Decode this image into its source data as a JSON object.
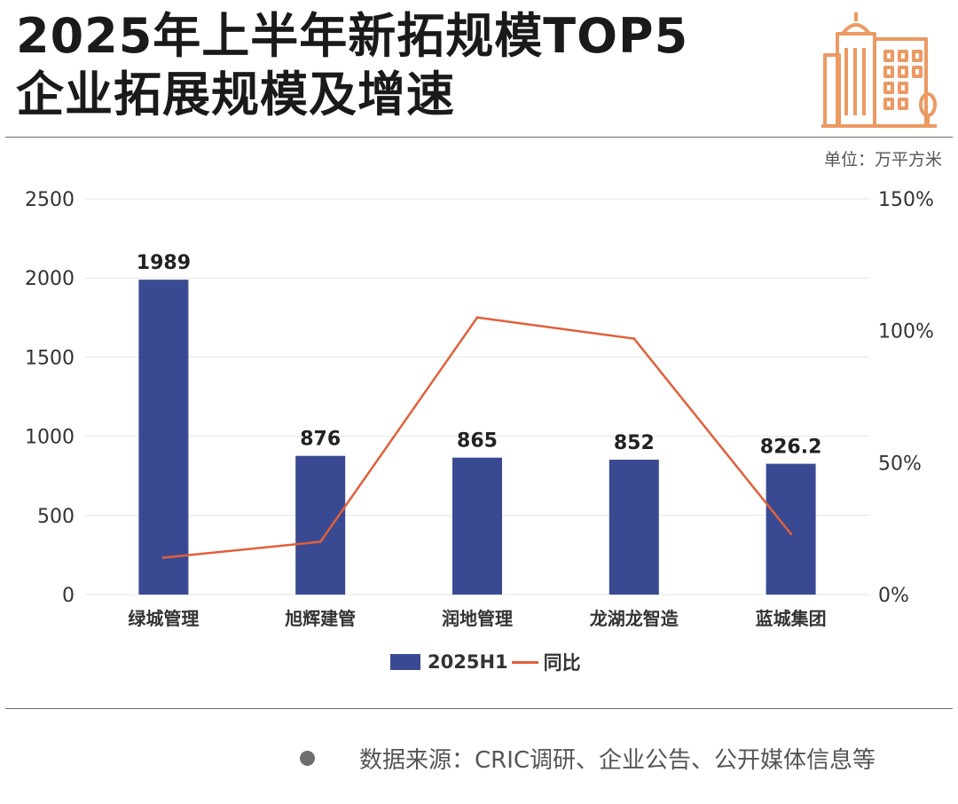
{
  "header": {
    "title_line1": "2025年上半年新拓规模TOP5",
    "title_line2": "企业拓展规模及增速"
  },
  "unit": "单位：万平方米",
  "legend": {
    "bar": "2025H1",
    "line": "同比"
  },
  "source": "数据来源：CRIC调研、企业公告、公开媒体信息等",
  "colors": {
    "bar": "#3a4a92",
    "line": "#e0603a",
    "grid": "#e4e4e4",
    "logo": "#eb9a63"
  },
  "chart_data": {
    "type": "bar",
    "categories": [
      "绿城管理",
      "旭辉建管",
      "润地管理",
      "龙湖龙智造",
      "蓝城集团"
    ],
    "series": [
      {
        "name": "2025H1",
        "type": "bar",
        "axis": "left",
        "values": [
          1989,
          876,
          865,
          852,
          826.2
        ],
        "labels": [
          "1989",
          "876",
          "865",
          "852",
          "826.2"
        ]
      },
      {
        "name": "同比",
        "type": "line",
        "axis": "right",
        "values": [
          14,
          20,
          105,
          97,
          23
        ]
      }
    ],
    "y_left": {
      "min": 0,
      "max": 2500,
      "ticks": [
        0,
        500,
        1000,
        1500,
        2000,
        2500
      ]
    },
    "y_right": {
      "min": 0,
      "max": 150,
      "ticks": [
        "0%",
        "50%",
        "100%",
        "150%"
      ]
    },
    "grid": true,
    "legend_position": "bottom"
  }
}
